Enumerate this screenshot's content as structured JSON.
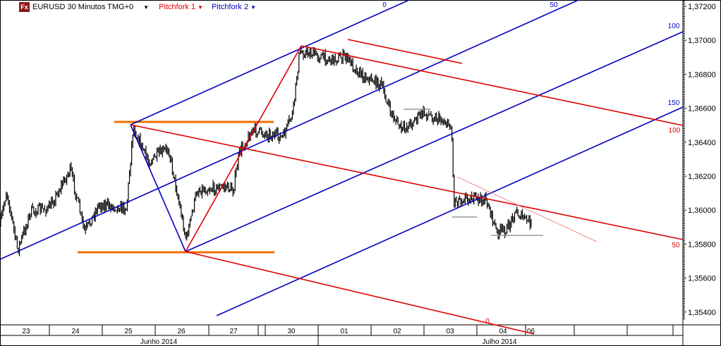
{
  "header": {
    "logo": "Fx",
    "symbol_title": "EURUSD 30 Minutos TMG+0",
    "indicators": [
      {
        "label": "Pitchfork 1",
        "color": "#e00000"
      },
      {
        "label": "Pitchfork 2",
        "color": "#0000c0"
      }
    ]
  },
  "chart_data": {
    "type": "line",
    "title": "EURUSD 30 Minutos TMG+0",
    "xlabel": "",
    "ylabel": "",
    "ylim": [
      1.3532,
      1.3728
    ],
    "y_ticks": [
      "1,37200",
      "1,37000",
      "1,36800",
      "1,36600",
      "1,36400",
      "1,36200",
      "1,36000",
      "1,35800",
      "1,35600",
      "1,35400"
    ],
    "x_day_labels": [
      "23",
      "24",
      "25",
      "26",
      "27",
      "30",
      "01",
      "02",
      "03",
      "04",
      "06"
    ],
    "x_month_labels": [
      "Junho 2014",
      "Julho 2014"
    ],
    "grid": false,
    "series": [
      {
        "style": "bars",
        "points": [
          {
            "t": "23 00:00",
            "p": 1.35909
          },
          {
            "t": "23 03:00",
            "p": 1.36117
          },
          {
            "t": "23 08:00",
            "p": 1.35764
          },
          {
            "t": "23 14:00",
            "p": 1.35992
          },
          {
            "t": "24 00:00",
            "p": 1.36013
          },
          {
            "t": "24 09:30",
            "p": 1.36241
          },
          {
            "t": "24 16:00",
            "p": 1.35868
          },
          {
            "t": "24 22:30",
            "p": 1.36034
          },
          {
            "t": "25 11:00",
            "p": 1.36013
          },
          {
            "t": "25 14:00",
            "p": 1.3649
          },
          {
            "t": "25 21:00",
            "p": 1.36283
          },
          {
            "t": "26 06:00",
            "p": 1.36366
          },
          {
            "t": "26 14:00",
            "p": 1.35826
          },
          {
            "t": "26 19:00",
            "p": 1.36117
          },
          {
            "t": "27 08:00",
            "p": 1.36138
          },
          {
            "t": "27 11:00",
            "p": 1.36117
          },
          {
            "t": "27 14:00",
            "p": 1.36345
          },
          {
            "t": "27 20:00",
            "p": 1.3647
          },
          {
            "t": "30 08:00",
            "p": 1.36428
          },
          {
            "t": "30 12:30",
            "p": 1.36573
          },
          {
            "t": "30 15:30",
            "p": 1.36926
          },
          {
            "t": "30 20:00",
            "p": 1.36926
          },
          {
            "t": "01 06:00",
            "p": 1.36885
          },
          {
            "t": "01 12:30",
            "p": 1.36905
          },
          {
            "t": "01 19:00",
            "p": 1.36802
          },
          {
            "t": "02 04:30",
            "p": 1.36739
          },
          {
            "t": "02 09:00",
            "p": 1.36573
          },
          {
            "t": "02 14:00",
            "p": 1.3647
          },
          {
            "t": "02 23:30",
            "p": 1.36573
          },
          {
            "t": "03 08:00",
            "p": 1.36532
          },
          {
            "t": "03 12:30",
            "p": 1.3649
          },
          {
            "t": "03 13:30",
            "p": 1.36055
          },
          {
            "t": "03 19:00",
            "p": 1.36075
          },
          {
            "t": "04 04:30",
            "p": 1.36055
          },
          {
            "t": "04 09:00",
            "p": 1.35868
          },
          {
            "t": "04 14:00",
            "p": 1.35889
          },
          {
            "t": "04 17:00",
            "p": 1.35992
          },
          {
            "t": "06 03:00",
            "p": 1.35918
          }
        ]
      }
    ],
    "annotations": {
      "pitchfork_2_labels": [
        "0",
        "50",
        "100",
        "150"
      ],
      "pitchfork_1_labels": [
        "0",
        "50",
        "100"
      ],
      "pitchfork_1_color": "#e00000",
      "pitchfork_2_color": "#0000c0",
      "horizontal_marker_color": "#f07000"
    }
  }
}
